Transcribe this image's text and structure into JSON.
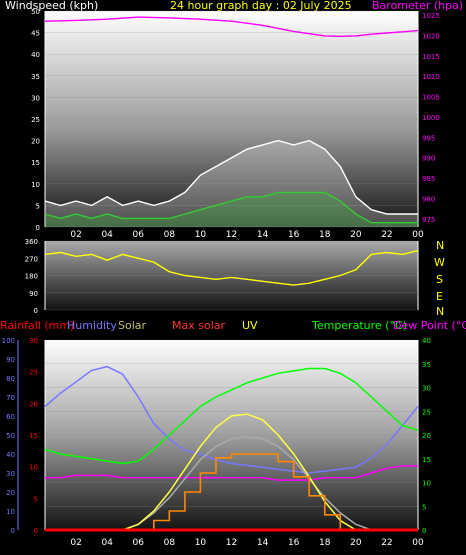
{
  "chart_data": [
    {
      "type": "line",
      "panel": "wind-barometer",
      "title": "24 hour graph day : 02 July 2025",
      "left_axis_label": "Windspeed (kph)",
      "right_axis_label": "Barometer (hpa)",
      "x_tick_labels": [
        "02",
        "04",
        "06",
        "08",
        "10",
        "12",
        "14",
        "16",
        "18",
        "20",
        "22",
        "00"
      ],
      "left_ticks": [
        0,
        5,
        10,
        15,
        20,
        25,
        30,
        35,
        40,
        45,
        50
      ],
      "right_ticks": [
        975,
        980,
        985,
        990,
        995,
        1000,
        1005,
        1010,
        1015,
        1020,
        1025
      ],
      "ylim_left": [
        0,
        50
      ],
      "ylim_right": [
        973,
        1026
      ],
      "series": [
        {
          "name": "Barometer (hpa)",
          "color": "#ff00ff",
          "axis": "right",
          "x_hours": [
            0,
            2,
            4,
            6,
            8,
            10,
            12,
            14,
            16,
            18,
            19,
            20,
            21,
            22,
            23,
            24
          ],
          "values": [
            1023.5,
            1023.7,
            1024.0,
            1024.5,
            1024.3,
            1024.0,
            1023.5,
            1022.5,
            1021.0,
            1019.9,
            1019.8,
            1019.9,
            1020.3,
            1020.6,
            1020.9,
            1021.2
          ]
        },
        {
          "name": "Wind gust",
          "color": "#ffffff",
          "axis": "left",
          "x_hours": [
            0,
            1,
            2,
            3,
            4,
            5,
            6,
            7,
            8,
            9,
            10,
            11,
            12,
            13,
            14,
            15,
            16,
            17,
            18,
            19,
            20,
            21,
            22,
            23,
            24
          ],
          "values": [
            6,
            5,
            6,
            5,
            7,
            5,
            6,
            5,
            6,
            8,
            12,
            14,
            16,
            18,
            19,
            20,
            19,
            20,
            18,
            14,
            7,
            4,
            3,
            3,
            3
          ]
        },
        {
          "name": "Wind average",
          "color": "#33cc33",
          "axis": "left",
          "x_hours": [
            0,
            1,
            2,
            3,
            4,
            5,
            6,
            7,
            8,
            9,
            10,
            11,
            12,
            13,
            14,
            15,
            16,
            17,
            18,
            19,
            20,
            21,
            22,
            23,
            24
          ],
          "values": [
            3,
            2,
            3,
            2,
            3,
            2,
            2,
            2,
            2,
            3,
            4,
            5,
            6,
            7,
            7,
            8,
            8,
            8,
            8,
            6,
            3,
            1,
            1,
            1,
            1
          ]
        }
      ]
    },
    {
      "type": "line",
      "panel": "wind-direction",
      "left_ticks": [
        0,
        90,
        180,
        270,
        360
      ],
      "ylim": [
        0,
        360
      ],
      "compass_labels": [
        "N",
        "W",
        "S",
        "E",
        "N"
      ],
      "series": [
        {
          "name": "Wind direction",
          "color": "#ffff00",
          "x_hours": [
            0,
            1,
            2,
            3,
            4,
            5,
            6,
            7,
            8,
            9,
            10,
            11,
            12,
            13,
            14,
            15,
            16,
            17,
            18,
            19,
            20,
            21,
            22,
            23,
            24
          ],
          "values": [
            290,
            300,
            280,
            290,
            260,
            290,
            270,
            250,
            200,
            180,
            170,
            160,
            170,
            160,
            150,
            140,
            130,
            140,
            160,
            180,
            210,
            290,
            300,
            290,
            310
          ]
        }
      ]
    },
    {
      "type": "line",
      "panel": "temperature-humidity-solar",
      "legend": [
        "Rainfall (mm)",
        "Humidity",
        "Solar",
        "Max solar",
        "UV",
        "Temperature (°C)",
        "Dew Point (°C)"
      ],
      "x_tick_labels": [
        "02",
        "04",
        "06",
        "08",
        "10",
        "12",
        "14",
        "16",
        "18",
        "20",
        "22",
        "00"
      ],
      "humidity_ticks": [
        0,
        10,
        20,
        30,
        40,
        50,
        60,
        70,
        80,
        90,
        100
      ],
      "rain_ticks": [
        0,
        5,
        10,
        15,
        20,
        25,
        30
      ],
      "temp_ticks": [
        0,
        5,
        10,
        15,
        20,
        25,
        30,
        35,
        40
      ],
      "ylim_humidity": [
        0,
        100
      ],
      "ylim_rain": [
        0,
        30
      ],
      "ylim_temp": [
        0,
        40
      ],
      "series": [
        {
          "name": "Humidity",
          "color": "#7777ff",
          "axis": "humidity",
          "x_hours": [
            0,
            1,
            2,
            3,
            4,
            5,
            6,
            7,
            8,
            9,
            10,
            11,
            12,
            13,
            14,
            15,
            16,
            17,
            18,
            19,
            20,
            21,
            22,
            23,
            24
          ],
          "values": [
            65,
            72,
            78,
            84,
            86,
            82,
            70,
            56,
            48,
            42,
            40,
            37,
            35,
            34,
            33,
            32,
            31,
            30,
            31,
            32,
            33,
            38,
            45,
            55,
            65
          ]
        },
        {
          "name": "Temperature (°C)",
          "color": "#00ff00",
          "axis": "temp",
          "x_hours": [
            0,
            1,
            2,
            3,
            4,
            5,
            6,
            7,
            8,
            9,
            10,
            11,
            12,
            13,
            14,
            15,
            16,
            17,
            18,
            19,
            20,
            21,
            22,
            23,
            24
          ],
          "values": [
            17,
            16,
            15.5,
            15,
            14.5,
            14,
            14.5,
            17,
            20,
            23,
            26,
            28,
            29.5,
            31,
            32,
            33,
            33.5,
            34,
            34,
            33,
            31,
            28,
            25,
            22,
            21
          ]
        },
        {
          "name": "Dew Point (°C)",
          "color": "#ff00ff",
          "axis": "temp",
          "x_hours": [
            0,
            1,
            2,
            3,
            4,
            5,
            6,
            7,
            8,
            9,
            10,
            11,
            12,
            13,
            14,
            15,
            16,
            17,
            18,
            19,
            20,
            21,
            22,
            23,
            24
          ],
          "values": [
            11,
            11,
            11.5,
            11.5,
            11.5,
            11,
            11,
            11,
            11,
            11,
            11,
            11,
            11,
            11,
            11,
            10.5,
            10.5,
            10.5,
            11,
            11,
            11,
            12,
            13,
            13.5,
            13.5
          ]
        },
        {
          "name": "Max solar",
          "color": "#aaaaaa",
          "axis": "humidity",
          "x_hours": [
            5,
            6,
            7,
            8,
            9,
            10,
            11,
            12,
            13,
            14,
            15,
            16,
            17,
            18,
            19,
            20,
            21
          ],
          "values": [
            0,
            3,
            9,
            17,
            27,
            37,
            44,
            48,
            49,
            48,
            44,
            37,
            27,
            17,
            9,
            3,
            0
          ]
        },
        {
          "name": "Solar",
          "color": "#ffff44",
          "axis": "humidity",
          "x_hours": [
            5,
            6,
            7,
            8,
            9,
            10,
            11,
            12,
            13,
            14,
            15,
            16,
            17,
            18,
            19,
            20
          ],
          "values": [
            0,
            3,
            10,
            20,
            32,
            44,
            54,
            60,
            61,
            58,
            50,
            40,
            28,
            15,
            5,
            0
          ]
        },
        {
          "name": "UV",
          "color": "#ff8800",
          "axis": "humidity",
          "x_hours": [
            6,
            7,
            8,
            9,
            10,
            11,
            12,
            13,
            14,
            15,
            16,
            17,
            18,
            19
          ],
          "values": [
            0,
            5,
            10,
            20,
            30,
            38,
            40,
            40,
            40,
            36,
            28,
            18,
            8,
            0
          ]
        },
        {
          "name": "Rainfall (mm)",
          "color": "#ff0000",
          "axis": "rain",
          "x_hours": [
            0,
            24
          ],
          "values": [
            0,
            0
          ]
        }
      ]
    }
  ],
  "colors": {
    "title": "#ffff00",
    "windspeed_label": "#ffffff",
    "barometer_label": "#ff00ff",
    "compass": "#ffff00",
    "rainfall_label": "#ff0000",
    "humidity_label": "#7777ff",
    "solar_label": "#bbbb77",
    "maxsolar_label": "#ff3333",
    "uv_label": "#ffff00",
    "temperature_label": "#00ff00",
    "dewpoint_label": "#ff00ff"
  }
}
